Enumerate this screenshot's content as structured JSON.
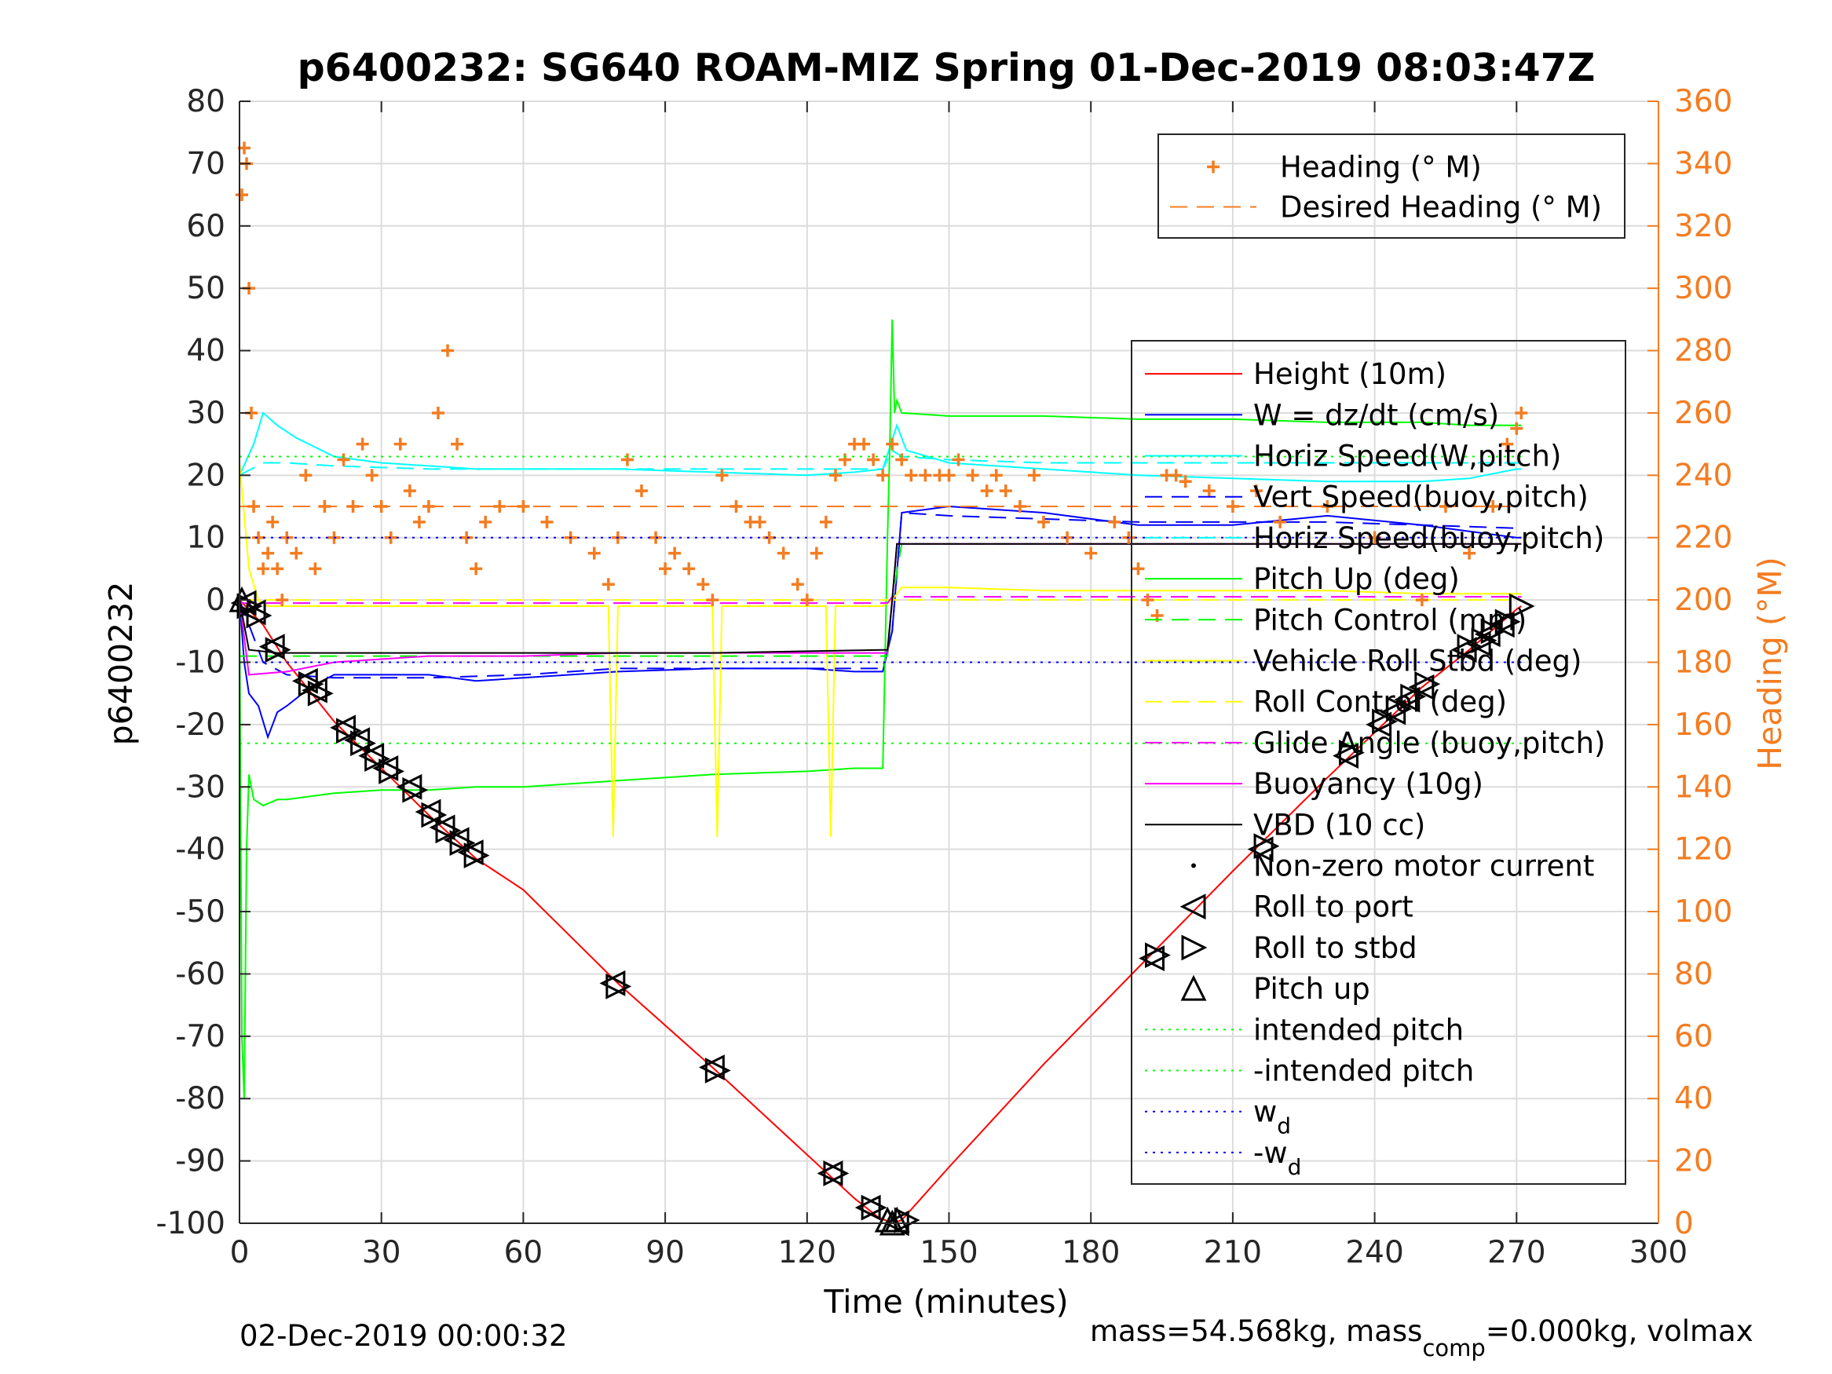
{
  "chart_data": {
    "type": "line",
    "title": "p6400232: SG640 ROAM-MIZ Spring 01-Dec-2019 08:03:47Z",
    "xlabel": "Time (minutes)",
    "ylabel_left": "p6400232",
    "ylabel_right": "Heading (°M)",
    "xlim": [
      0,
      300
    ],
    "ylim_left": [
      -100,
      80
    ],
    "ylim_right": [
      0,
      360
    ],
    "xticks": [
      "0",
      "30",
      "60",
      "90",
      "120",
      "150",
      "180",
      "210",
      "240",
      "270",
      "300"
    ],
    "yticks_left": [
      "80",
      "70",
      "60",
      "50",
      "40",
      "30",
      "20",
      "10",
      "0",
      "-10",
      "-20",
      "-30",
      "-40",
      "-50",
      "-60",
      "-70",
      "-80",
      "-90",
      "-100"
    ],
    "yticks_right": [
      "360",
      "340",
      "320",
      "300",
      "280",
      "260",
      "240",
      "220",
      "200",
      "180",
      "160",
      "140",
      "120",
      "100",
      "80",
      "60",
      "40",
      "20",
      "0"
    ],
    "grid": true,
    "footer_left": "02-Dec-2019 00:00:32",
    "footer_right": "mass=54.568kg, mass",
    "footer_right_sub": "comp",
    "footer_right_tail": "=0.000kg, volmax",
    "colors": {
      "height": "#ff0000",
      "w": "#0000ff",
      "horiz": "#00ffff",
      "vert_buoy": "#0000ff",
      "horiz_buoy": "#00ffff",
      "pitch": "#00ff00",
      "pitch_ctrl": "#00ff00",
      "roll": "#ffff00",
      "roll_ctrl": "#ffff00",
      "glide": "#ff00ff",
      "buoyancy": "#ff00ff",
      "vbd": "#000000",
      "heading": "#f47c20",
      "intended": "#00ff00",
      "wd": "#0000ff"
    },
    "legend_heading": [
      {
        "label": "Heading (° M)",
        "style": "plus",
        "color": "#f47c20"
      },
      {
        "label": "Desired Heading (° M)",
        "style": "dashed",
        "color": "#f47c20"
      }
    ],
    "legend_main": [
      {
        "label": "Height (10m)",
        "style": "solid",
        "color": "#ff0000"
      },
      {
        "label": "W = dz/dt (cm/s)",
        "style": "solid",
        "color": "#0000ff"
      },
      {
        "label": "Horiz Speed(W,pitch)",
        "style": "solid",
        "color": "#00ffff"
      },
      {
        "label": "Vert Speed(buoy,pitch)",
        "style": "dashed",
        "color": "#0000ff"
      },
      {
        "label": "Horiz Speed(buoy,pitch)",
        "style": "dashed",
        "color": "#00ffff"
      },
      {
        "label": "Pitch Up (deg)",
        "style": "solid",
        "color": "#00ff00"
      },
      {
        "label": "Pitch Control (mm)",
        "style": "dashed",
        "color": "#00ff00"
      },
      {
        "label": "Vehicle Roll Stbd (deg)",
        "style": "solid",
        "color": "#ffff00"
      },
      {
        "label": "Roll Control (deg)",
        "style": "dashed",
        "color": "#ffff00"
      },
      {
        "label": "Glide Angle (buoy,pitch)",
        "style": "dashed",
        "color": "#ff00ff"
      },
      {
        "label": "Buoyancy (10g)",
        "style": "solid",
        "color": "#ff00ff"
      },
      {
        "label": "VBD (10 cc)",
        "style": "solid",
        "color": "#000000"
      },
      {
        "label": "Non-zero motor current",
        "style": "dot",
        "color": "#000000"
      },
      {
        "label": "Roll to port",
        "style": "tri-left",
        "color": "#000000"
      },
      {
        "label": "Roll to stbd",
        "style": "tri-right",
        "color": "#000000"
      },
      {
        "label": "Pitch up",
        "style": "tri-up",
        "color": "#000000"
      },
      {
        "label": "intended pitch",
        "style": "dotted",
        "color": "#00ff00"
      },
      {
        "label": "-intended pitch",
        "style": "dotted",
        "color": "#00ff00"
      },
      {
        "label": "w",
        "sub": "d",
        "style": "dotted",
        "color": "#0000ff"
      },
      {
        "label": "-w",
        "sub": "d",
        "style": "dotted",
        "color": "#0000ff"
      }
    ],
    "series": [
      {
        "name": "Height (10m)",
        "axis": "left",
        "color": "#ff0000",
        "x": [
          0,
          5,
          10,
          20,
          30,
          40,
          50,
          60,
          80,
          100,
          120,
          130,
          135,
          138,
          140,
          150,
          170,
          190,
          210,
          230,
          250,
          260,
          270,
          271
        ],
        "y": [
          0,
          -4,
          -10,
          -19.5,
          -27,
          -34.5,
          -41.5,
          -46.5,
          -61.5,
          -75,
          -89,
          -96,
          -99,
          -100,
          -99.5,
          -91,
          -74.5,
          -59,
          -43.5,
          -28.5,
          -14,
          -8,
          -1.5,
          -1
        ]
      },
      {
        "name": "W = dz/dt (cm/s)",
        "axis": "left",
        "color": "#0000ff",
        "x": [
          0,
          1,
          2,
          4,
          6,
          8,
          10,
          15,
          20,
          30,
          40,
          50,
          60,
          80,
          100,
          120,
          130,
          136,
          138,
          140,
          150,
          170,
          190,
          210,
          230,
          250,
          260,
          270,
          271
        ],
        "y": [
          0,
          -10,
          -15,
          -17,
          -22,
          -18,
          -17,
          -14,
          -12,
          -12,
          -12,
          -13,
          -12.5,
          -11.5,
          -11,
          -11,
          -11.5,
          -11.5,
          -5,
          14,
          15,
          14,
          12,
          12,
          13.5,
          12,
          11,
          10,
          10
        ]
      },
      {
        "name": "Horiz Speed(W,pitch)",
        "axis": "left",
        "color": "#00ffff",
        "x": [
          0,
          3,
          5,
          8,
          12,
          20,
          30,
          40,
          50,
          60,
          80,
          100,
          120,
          130,
          136,
          139,
          141,
          150,
          170,
          190,
          210,
          230,
          250,
          260,
          270,
          271
        ],
        "y": [
          20,
          25,
          30,
          28,
          26,
          23,
          22,
          21.5,
          21,
          21,
          21,
          20.5,
          20,
          20.5,
          21,
          28,
          24,
          22,
          21,
          20,
          19.5,
          19,
          19,
          19.5,
          21,
          21
        ]
      },
      {
        "name": "Vert Speed(buoy,pitch)",
        "axis": "left",
        "color": "#0000ff",
        "dashed": true,
        "x": [
          0,
          5,
          10,
          20,
          40,
          60,
          80,
          100,
          120,
          136,
          138,
          140,
          150,
          170,
          190,
          210,
          230,
          250,
          270,
          271
        ],
        "y": [
          0,
          -10,
          -12,
          -12.5,
          -12.5,
          -12,
          -11,
          -11,
          -11,
          -11,
          -5,
          14,
          13.5,
          13,
          12.5,
          12.5,
          12.5,
          12,
          11.5,
          11.5
        ]
      },
      {
        "name": "Horiz Speed(buoy,pitch)",
        "axis": "left",
        "color": "#00ffff",
        "dashed": true,
        "x": [
          0,
          5,
          10,
          20,
          40,
          60,
          80,
          100,
          120,
          136,
          138,
          140,
          150,
          170,
          190,
          210,
          230,
          250,
          270,
          271
        ],
        "y": [
          20,
          22,
          22,
          21.5,
          21,
          21,
          21,
          21,
          21,
          21,
          24,
          23,
          22.5,
          22,
          22,
          22,
          22,
          22,
          22,
          22
        ]
      },
      {
        "name": "Pitch Up (deg)",
        "axis": "left",
        "color": "#00ff00",
        "x": [
          0,
          0.5,
          1,
          1.5,
          2,
          3,
          5,
          8,
          10,
          20,
          30,
          40,
          50,
          60,
          80,
          100,
          120,
          130,
          136,
          137,
          137.5,
          138,
          138.5,
          139,
          140,
          150,
          170,
          190,
          210,
          230,
          250,
          260,
          270,
          271
        ],
        "y": [
          0,
          -70,
          -80,
          -40,
          -28,
          -32,
          -33,
          -32,
          -32,
          -31,
          -30.5,
          -30.5,
          -30,
          -30,
          -29,
          -28,
          -27.5,
          -27,
          -27,
          10,
          25,
          45,
          30,
          32,
          30,
          29.5,
          29.5,
          29,
          29,
          28.5,
          28.5,
          28,
          28,
          28
        ]
      },
      {
        "name": "Pitch Control (mm)",
        "axis": "left",
        "color": "#00ff00",
        "dashed": true,
        "x": [
          0,
          5,
          137,
          138,
          140,
          271
        ],
        "y": [
          -9,
          -9,
          -9,
          0,
          9,
          9
        ]
      },
      {
        "name": "Vehicle Roll Stbd (deg)",
        "axis": "left",
        "color": "#ffff00",
        "x": [
          0,
          2,
          4,
          6,
          10,
          20,
          40,
          60,
          78,
          79,
          80,
          100,
          101,
          102,
          124,
          125,
          126,
          134,
          136,
          138,
          140,
          150,
          170,
          190,
          210,
          230,
          250,
          270,
          271
        ],
        "y": [
          22,
          5,
          0,
          -1,
          -1,
          -1,
          -1,
          -1,
          -1,
          -38,
          -1,
          -1,
          -38,
          -1,
          -1,
          -38,
          -1,
          -1,
          -1,
          0,
          2,
          2,
          1.5,
          1.5,
          1.5,
          1.5,
          1,
          1,
          1
        ]
      },
      {
        "name": "Roll Control (deg)",
        "axis": "left",
        "color": "#ffff00",
        "dashed": true,
        "x": [
          0,
          137,
          138,
          271
        ],
        "y": [
          0,
          0,
          0,
          0
        ]
      },
      {
        "name": "Glide Angle (buoy,pitch)",
        "axis": "left",
        "color": "#ff00ff",
        "dashed": true,
        "x": [
          0,
          137,
          138,
          271
        ],
        "y": [
          -0.5,
          -0.5,
          0.5,
          0.5
        ]
      },
      {
        "name": "Buoyancy (10g)",
        "axis": "left",
        "color": "#ff00ff",
        "x": [
          0,
          2,
          10,
          20,
          30,
          40,
          60,
          80,
          100,
          120,
          137,
          138,
          139,
          150,
          170,
          190,
          210,
          230,
          250,
          270,
          271
        ],
        "y": [
          0,
          -12,
          -11.5,
          -10,
          -9.5,
          -9,
          -9,
          -8.5,
          -8.5,
          -8.5,
          -8.5,
          0,
          9,
          9,
          9,
          9,
          9,
          9,
          9,
          9,
          9
        ]
      },
      {
        "name": "VBD (10 cc)",
        "axis": "left",
        "color": "#000000",
        "x": [
          0,
          2,
          8,
          20,
          60,
          100,
          137,
          138,
          139,
          150,
          190,
          230,
          271
        ],
        "y": [
          0,
          -8,
          -8.5,
          -8.5,
          -8.5,
          -8.5,
          -8,
          0,
          9,
          9,
          9,
          9,
          9
        ]
      },
      {
        "name": "Heading (° M)",
        "axis": "right",
        "color": "#f47c20",
        "marker": "plus",
        "x": [
          0.5,
          1,
          1.5,
          2,
          2.5,
          3,
          4,
          5,
          6,
          7,
          8,
          9,
          10,
          12,
          14,
          16,
          18,
          20,
          22,
          24,
          26,
          28,
          30,
          32,
          34,
          36,
          38,
          40,
          42,
          44,
          46,
          48,
          50,
          52,
          55,
          60,
          65,
          70,
          75,
          78,
          80,
          82,
          85,
          88,
          90,
          92,
          95,
          98,
          100,
          102,
          105,
          108,
          110,
          112,
          115,
          118,
          120,
          122,
          124,
          126,
          128,
          130,
          132,
          134,
          136,
          138,
          140,
          142,
          145,
          148,
          150,
          152,
          155,
          158,
          160,
          162,
          165,
          168,
          170,
          175,
          180,
          185,
          188,
          190,
          192,
          194,
          196,
          198,
          200,
          205,
          210,
          215,
          220,
          230,
          240,
          250,
          255,
          260,
          265,
          268,
          270,
          271
        ],
        "y": [
          330,
          345,
          340,
          300,
          260,
          230,
          220,
          210,
          215,
          225,
          210,
          200,
          220,
          215,
          240,
          210,
          230,
          220,
          245,
          230,
          250,
          240,
          230,
          220,
          250,
          235,
          225,
          230,
          260,
          280,
          250,
          220,
          210,
          225,
          230,
          230,
          225,
          220,
          215,
          205,
          220,
          245,
          235,
          220,
          210,
          215,
          210,
          205,
          200,
          240,
          230,
          225,
          225,
          220,
          215,
          205,
          200,
          215,
          225,
          240,
          245,
          250,
          250,
          245,
          240,
          250,
          245,
          240,
          240,
          240,
          240,
          245,
          240,
          235,
          240,
          235,
          230,
          240,
          225,
          220,
          215,
          225,
          220,
          210,
          200,
          195,
          240,
          240,
          238,
          235,
          230,
          235,
          225,
          230,
          220,
          200,
          230,
          215,
          230,
          250,
          255,
          260
        ]
      },
      {
        "name": "Desired Heading (° M)",
        "axis": "right",
        "color": "#f47c20",
        "dashed": true,
        "x": [
          0,
          271
        ],
        "y": [
          230,
          230
        ]
      },
      {
        "name": "intended pitch",
        "axis": "left",
        "color": "#00ff00",
        "dotted": true,
        "x": [
          0,
          271
        ],
        "y": [
          23,
          23
        ]
      },
      {
        "name": "-intended pitch",
        "axis": "left",
        "color": "#00ff00",
        "dotted": true,
        "x": [
          0,
          271
        ],
        "y": [
          -23,
          -23
        ]
      },
      {
        "name": "w_d",
        "axis": "left",
        "color": "#0000ff",
        "dotted": true,
        "x": [
          0,
          271
        ],
        "y": [
          10,
          10
        ]
      },
      {
        "name": "-w_d",
        "axis": "left",
        "color": "#0000ff",
        "dotted": true,
        "x": [
          0,
          271
        ],
        "y": [
          -10,
          -10
        ]
      }
    ],
    "events": {
      "roll_port": {
        "x": [
          1,
          3,
          7,
          14,
          16,
          22,
          25,
          28,
          31,
          36,
          40,
          43,
          46,
          49,
          79,
          100,
          125,
          133,
          139,
          193,
          216,
          234,
          241,
          244,
          247,
          250,
          259,
          262,
          264,
          267
        ],
        "y": [
          -0.5,
          -2,
          -7.5,
          -13,
          -14.5,
          -20.5,
          -22.5,
          -25,
          -27,
          -30,
          -34,
          -36.5,
          -38.5,
          -40.5,
          -61.5,
          -75,
          -92,
          -97.5,
          -100,
          -57.5,
          -40,
          -25,
          -20,
          -18,
          -16,
          -14,
          -8,
          -7,
          -5.5,
          -4
        ]
      },
      "roll_stbd": {
        "x": [
          2,
          4,
          8,
          15,
          17,
          23,
          26,
          29,
          32,
          37,
          41,
          44,
          47,
          50,
          80,
          101,
          126,
          134,
          141,
          194,
          217,
          235,
          242,
          245,
          248,
          251,
          260,
          263,
          265,
          268,
          271
        ],
        "y": [
          -1,
          -2.5,
          -8,
          -13.5,
          -15,
          -21,
          -23,
          -25.5,
          -27.5,
          -30.5,
          -34.5,
          -37,
          -39,
          -41,
          -62,
          -75.5,
          -92,
          -97.5,
          -99.5,
          -57,
          -39.5,
          -24.5,
          -19.5,
          -17.5,
          -15.5,
          -13.5,
          -7.5,
          -6.5,
          -5,
          -3.5,
          -1
        ]
      },
      "pitch_up": {
        "x": [
          0.5,
          137,
          138,
          139
        ],
        "y": [
          0,
          -99.5,
          -100,
          -99.5
        ]
      }
    }
  }
}
